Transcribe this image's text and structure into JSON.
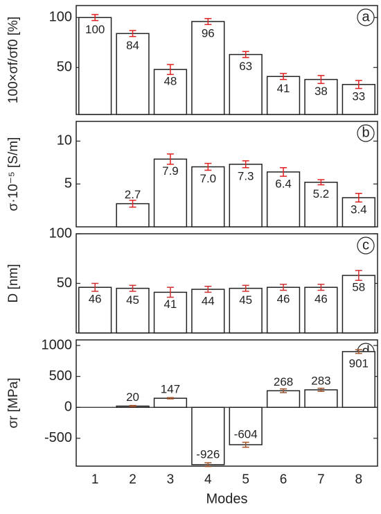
{
  "chart_data": [
    {
      "type": "bar",
      "panel_label": "a",
      "ylabel": "100×σf/σf0 [%]",
      "values": [
        100,
        84,
        48,
        96,
        63,
        41,
        38,
        33
      ],
      "errors": [
        3,
        3,
        5,
        3,
        3,
        3,
        4,
        4
      ],
      "color": "#ffffff",
      "error_color": "#e02020",
      "ylim": [
        3,
        112
      ],
      "yticks": [
        50,
        100
      ]
    },
    {
      "type": "bar",
      "panel_label": "b",
      "ylabel": "σ·10⁻⁵ [S/m]",
      "values": [
        null,
        2.7,
        7.9,
        7.0,
        7.3,
        6.4,
        5.2,
        3.4
      ],
      "value_labels": [
        null,
        "2.7",
        "7.9",
        "7.0",
        "7.3",
        "6.4",
        "5.2",
        "3.4"
      ],
      "errors": [
        null,
        0.4,
        0.6,
        0.4,
        0.4,
        0.5,
        0.3,
        0.5
      ],
      "color": "#ffffff",
      "error_color": "#e02020",
      "ylim": [
        0,
        12.3
      ],
      "yticks": [
        5,
        10
      ]
    },
    {
      "type": "bar",
      "panel_label": "c",
      "ylabel": "D [nm]",
      "values": [
        46,
        45,
        41,
        44,
        45,
        46,
        46,
        58
      ],
      "errors": [
        4,
        3,
        5,
        3,
        3,
        3,
        3,
        5
      ],
      "color": "#ffffff",
      "error_color": "#d03030",
      "ylim": [
        0,
        100
      ],
      "yticks": [
        50,
        100
      ]
    },
    {
      "type": "bar",
      "panel_label": "d",
      "ylabel": "σr [MPa]",
      "xlabel": "Modes",
      "categories": [
        "1",
        "2",
        "3",
        "4",
        "5",
        "6",
        "7",
        "8"
      ],
      "values": [
        null,
        20,
        147,
        -926,
        -604,
        268,
        283,
        901
      ],
      "errors": [
        null,
        10,
        10,
        30,
        40,
        30,
        25,
        30
      ],
      "color": "#ffffff",
      "error_color": "#a0522d",
      "ylim": [
        -950,
        1090
      ],
      "yticks": [
        -500,
        0,
        500,
        1000
      ]
    }
  ]
}
